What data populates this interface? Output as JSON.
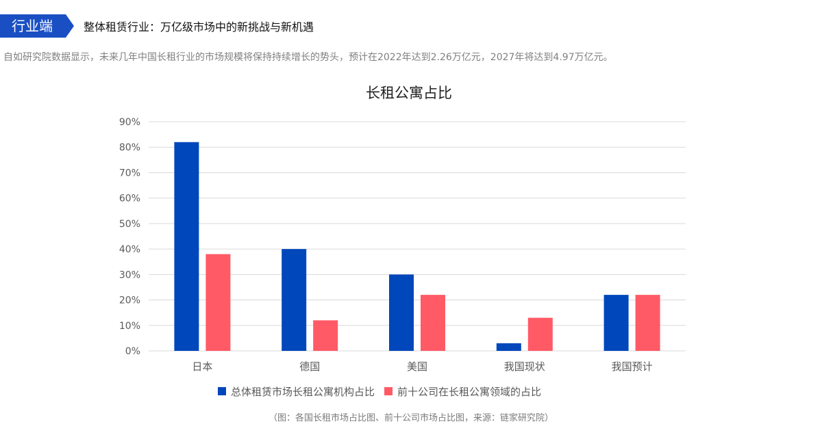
{
  "header": {
    "badge": "行业端",
    "title": "整体租赁行业：万亿级市场中的新挑战与新机遇"
  },
  "description": "自如研究院数据显示，未来几年中国长租行业的市场规模将保持持续增长的势头，预计在2022年达到2.26万亿元，2027年将达到4.97万亿元。",
  "colors": {
    "badge": "#1a4fc4",
    "series1": "#0047bb",
    "series2": "#ff5a66",
    "grid": "#d9d9d9"
  },
  "chart_data": {
    "type": "bar",
    "title": "长租公寓占比",
    "categories": [
      "日本",
      "德国",
      "美国",
      "我国现状",
      "我国预计"
    ],
    "series": [
      {
        "name": "总体租赁市场长租公寓机构占比",
        "values": [
          82,
          40,
          30,
          3,
          22
        ]
      },
      {
        "name": "前十公司在长租公寓领域的占比",
        "values": [
          38,
          12,
          22,
          13,
          22
        ]
      }
    ],
    "y_ticks": [
      "0%",
      "10%",
      "20%",
      "30%",
      "40%",
      "50%",
      "60%",
      "70%",
      "80%",
      "90%"
    ],
    "ylim": [
      0,
      90
    ],
    "grid": true,
    "legend_position": "bottom"
  },
  "footnote": "（图：各国长租市场占比图、前十公司市场占比图，来源：链家研究院）"
}
